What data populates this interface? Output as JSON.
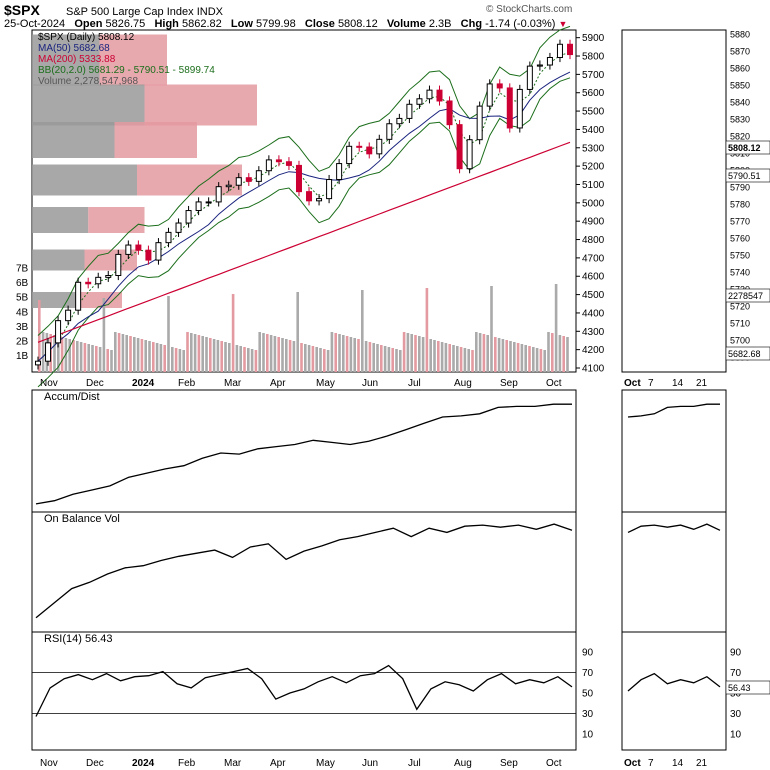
{
  "header": {
    "symbol": "$SPX",
    "description": "S&P 500 Large Cap Index",
    "exchange": "INDX",
    "date": "25-Oct-2024",
    "open_label": "Open",
    "open": "5826.75",
    "high_label": "High",
    "high": "5862.82",
    "low_label": "Low",
    "low": "5799.98",
    "close_label": "Close",
    "close": "5808.12",
    "volume_label": "Volume",
    "volume": "2.3B",
    "chg_label": "Chg",
    "chg": "-1.74 (-0.03%)",
    "credit": "© StockCharts.com"
  },
  "legend": {
    "price": "$SPX (Daily) 5808.12",
    "ma50": "MA(50) 5682.68",
    "ma200": "MA(200) 5333.88",
    "bb": "BB(20,2.0) 5681.29 - 5790.51 - 5899.74",
    "volume": "Volume 2,278,547,968"
  },
  "colors": {
    "up": "#000000",
    "down": "#cc0033",
    "ma50": "#1a237e",
    "ma200": "#cc0033",
    "bb": "#1b6e1b",
    "vbp_up": "#999999",
    "vbp_down": "#e39aa0"
  },
  "main_x_labels": [
    "Nov",
    "Dec",
    "2024",
    "Feb",
    "Mar",
    "Apr",
    "May",
    "Jun",
    "Jul",
    "Aug",
    "Sep",
    "Oct"
  ],
  "zoom_x_labels": [
    "Oct",
    "7",
    "14",
    "21"
  ],
  "price_ticks": [
    5900,
    5800,
    5700,
    5600,
    5500,
    5400,
    5300,
    5200,
    5100,
    5000,
    4900,
    4800,
    4700,
    4600,
    4500,
    4400,
    4300,
    4200,
    4100
  ],
  "volume_ticks": [
    "7B",
    "6B",
    "5B",
    "4B",
    "3B",
    "2B",
    "1B"
  ],
  "zoom_price_ticks": [
    5880,
    5870,
    5860,
    5850,
    5840,
    5830,
    5820,
    5810,
    5800,
    5790,
    5780,
    5770,
    5760,
    5750,
    5740,
    5730,
    5720,
    5710,
    5700,
    5690
  ],
  "zoom_tags": {
    "close": "5808.12",
    "bb_mid": "5790.51",
    "volume": "2278547",
    "ma50": "5682.68"
  },
  "panels": {
    "ad": {
      "label": "Accum/Dist"
    },
    "obv": {
      "label": "On Balance Vol"
    },
    "rsi": {
      "label": "RSI(14) 56.43",
      "ticks": [
        90,
        70,
        50,
        30,
        10
      ],
      "tag": "56.43"
    }
  },
  "chart_data": [
    {
      "type": "line",
      "title": "$SPX (Daily) 5808.12",
      "series": [
        {
          "name": "$SPX (Daily)",
          "values": [
            4137,
            4237,
            4358,
            4415,
            4567,
            4559,
            4594,
            4604,
            4719,
            4770,
            4742,
            4688,
            4783,
            4839,
            4890,
            4958,
            5005,
            5005,
            5088,
            5096,
            5137,
            5117,
            5175,
            5234,
            5224,
            5204,
            5061,
            5011,
            5023,
            5127,
            5214,
            5308,
            5304,
            5267,
            5346,
            5431,
            5460,
            5537,
            5567,
            5614,
            5555,
            5426,
            5186,
            5344,
            5527,
            5648,
            5626,
            5408,
            5618,
            5745,
            5751,
            5792,
            5864,
            5808
          ]
        }
      ],
      "ylim": [
        4100,
        5920
      ]
    },
    {
      "type": "line",
      "title": "Accum/Dist",
      "series": [
        {
          "name": "Accum/Dist",
          "values": [
            0.02,
            0.05,
            0.11,
            0.15,
            0.19,
            0.27,
            0.31,
            0.35,
            0.38,
            0.45,
            0.5,
            0.49,
            0.54,
            0.56,
            0.58,
            0.62,
            0.6,
            0.58,
            0.61,
            0.66,
            0.72,
            0.78,
            0.84,
            0.85,
            0.87,
            0.93,
            0.94,
            0.94,
            0.96,
            0.96
          ]
        }
      ],
      "ylim": [
        0,
        1
      ]
    },
    {
      "type": "line",
      "title": "On Balance Vol",
      "series": [
        {
          "name": "On Balance Vol",
          "values": [
            0.08,
            0.22,
            0.36,
            0.42,
            0.5,
            0.56,
            0.58,
            0.63,
            0.67,
            0.7,
            0.73,
            0.66,
            0.76,
            0.79,
            0.64,
            0.72,
            0.77,
            0.83,
            0.86,
            0.9,
            0.94,
            0.86,
            0.94,
            0.9,
            0.96,
            0.97,
            0.95,
            0.97,
            0.93,
            0.98,
            0.92
          ]
        }
      ],
      "ylim": [
        0,
        1
      ]
    },
    {
      "type": "line",
      "title": "RSI(14) 56.43",
      "series": [
        {
          "name": "RSI(14)",
          "values": [
            27,
            55,
            64,
            68,
            63,
            69,
            62,
            66,
            67,
            71,
            59,
            55,
            65,
            68,
            71,
            74,
            64,
            44,
            50,
            54,
            61,
            66,
            60,
            67,
            69,
            77,
            64,
            34,
            54,
            61,
            58,
            52,
            63,
            69,
            59,
            63,
            60,
            66,
            56
          ]
        }
      ],
      "ylim": [
        0,
        100
      ]
    }
  ]
}
